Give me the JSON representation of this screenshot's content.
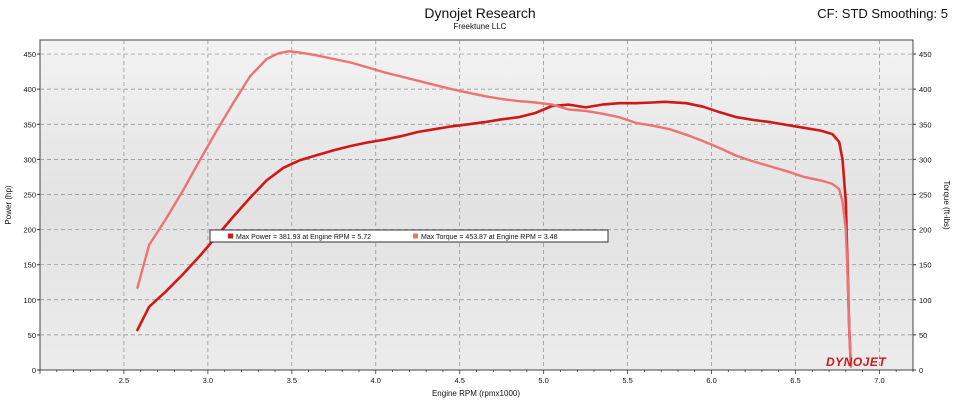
{
  "header": {
    "title": "Dynojet Research",
    "subtitle": "Freektune LLC",
    "cf_smoothing": "CF: STD Smoothing: 5"
  },
  "legend": {
    "power": "Max Power = 381.93 at Engine RPM = 5.72",
    "torque": "Max Torque = 453.87 at Engine RPM = 3.48"
  },
  "watermark": "DYNOJET",
  "colors": {
    "power": "#d11818",
    "torque": "#ec7373",
    "plot_bg": "#e6e6e6",
    "grid": "#8a8a8a"
  },
  "chart_data": {
    "type": "line",
    "title": "Dynojet Research",
    "subtitle": "Freektune LLC",
    "xlabel": "Engine RPM (rpmx1000)",
    "ylabel_left": "Power (hp)",
    "ylabel_right": "Torque (ft-lbs)",
    "xlim": [
      2.0,
      7.2
    ],
    "ylim": [
      0,
      470
    ],
    "x_ticks": [
      "2.5",
      "3.0",
      "3.5",
      "4.0",
      "4.5",
      "5.0",
      "5.5",
      "6.0",
      "6.5",
      "7.0"
    ],
    "y_ticks": [
      "0",
      "50",
      "100",
      "150",
      "200",
      "250",
      "300",
      "350",
      "400",
      "450"
    ],
    "grid": true,
    "legend_position": "center-left",
    "series": [
      {
        "name": "Power",
        "axis": "left",
        "x": [
          2.58,
          2.65,
          2.75,
          2.85,
          2.95,
          3.05,
          3.15,
          3.25,
          3.35,
          3.45,
          3.55,
          3.65,
          3.75,
          3.85,
          3.95,
          4.05,
          4.15,
          4.25,
          4.35,
          4.45,
          4.55,
          4.65,
          4.75,
          4.85,
          4.95,
          5.05,
          5.15,
          5.25,
          5.35,
          5.45,
          5.55,
          5.65,
          5.72,
          5.85,
          5.95,
          6.05,
          6.15,
          6.25,
          6.35,
          6.45,
          6.55,
          6.65,
          6.72,
          6.76,
          6.78,
          6.8,
          6.81,
          6.82,
          6.83
        ],
        "y": [
          57,
          90,
          112,
          136,
          162,
          190,
          218,
          245,
          270,
          288,
          299,
          306,
          313,
          319,
          324,
          328,
          333,
          339,
          343,
          347,
          350,
          353,
          357,
          360,
          366,
          376,
          378,
          374,
          378,
          380,
          380,
          381,
          381.93,
          380,
          375,
          367,
          360,
          356,
          353,
          349,
          345,
          341,
          336,
          325,
          300,
          240,
          150,
          60,
          5
        ]
      },
      {
        "name": "Torque",
        "axis": "right",
        "x": [
          2.58,
          2.65,
          2.75,
          2.85,
          2.95,
          3.05,
          3.15,
          3.25,
          3.35,
          3.42,
          3.48,
          3.55,
          3.65,
          3.75,
          3.85,
          3.95,
          4.05,
          4.15,
          4.25,
          4.35,
          4.45,
          4.55,
          4.65,
          4.75,
          4.85,
          4.95,
          5.05,
          5.15,
          5.25,
          5.35,
          5.45,
          5.55,
          5.65,
          5.75,
          5.85,
          5.95,
          6.05,
          6.15,
          6.25,
          6.35,
          6.45,
          6.55,
          6.65,
          6.72,
          6.76,
          6.78,
          6.8,
          6.81,
          6.82,
          6.83
        ],
        "y": [
          117,
          178,
          215,
          255,
          298,
          340,
          380,
          418,
          443,
          451,
          453.87,
          452,
          448,
          443,
          438,
          431,
          424,
          418,
          412,
          406,
          400,
          395,
          390,
          386,
          383,
          381,
          378,
          371,
          369,
          365,
          360,
          352,
          348,
          343,
          335,
          326,
          316,
          305,
          297,
          290,
          283,
          275,
          270,
          265,
          258,
          240,
          200,
          140,
          60,
          5
        ]
      }
    ]
  }
}
